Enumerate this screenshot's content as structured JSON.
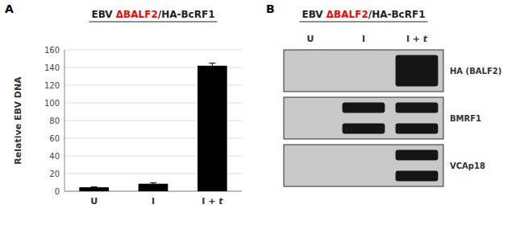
{
  "chart_data": [
    {
      "type": "bar",
      "annotations": [
        "A"
      ],
      "title": "EBV ΔBALF2/HA-BcRF1",
      "title_highlight": "ΔBALF2",
      "highlight_color": "#ff0000",
      "categories": [
        "U",
        "I",
        "I + t"
      ],
      "values": [
        4.5,
        8.5,
        142.0
      ],
      "errors": [
        0.5,
        1.0,
        3.0
      ],
      "y_label": "Relative EBV DNA",
      "ylim": [
        0,
        160
      ],
      "yticks": [
        0,
        20,
        40,
        60,
        80,
        100,
        120,
        140,
        160
      ],
      "color": "#000000",
      "grid": true
    },
    {
      "type": "blot",
      "annotations": [
        "B"
      ],
      "title": "EBV ΔBALF2/HA-BcRF1",
      "title_highlight": "ΔBALF2",
      "highlight_color": "#ff0000",
      "categories": [
        "U",
        "I",
        "I + t"
      ],
      "labels": [
        "HA (BALF2)",
        "BMRF1",
        "VCAp18"
      ],
      "bands": [
        [
          0,
          0,
          1
        ],
        [
          0,
          2,
          2
        ],
        [
          0,
          0,
          2
        ]
      ],
      "color": "#c8c8c8"
    }
  ]
}
